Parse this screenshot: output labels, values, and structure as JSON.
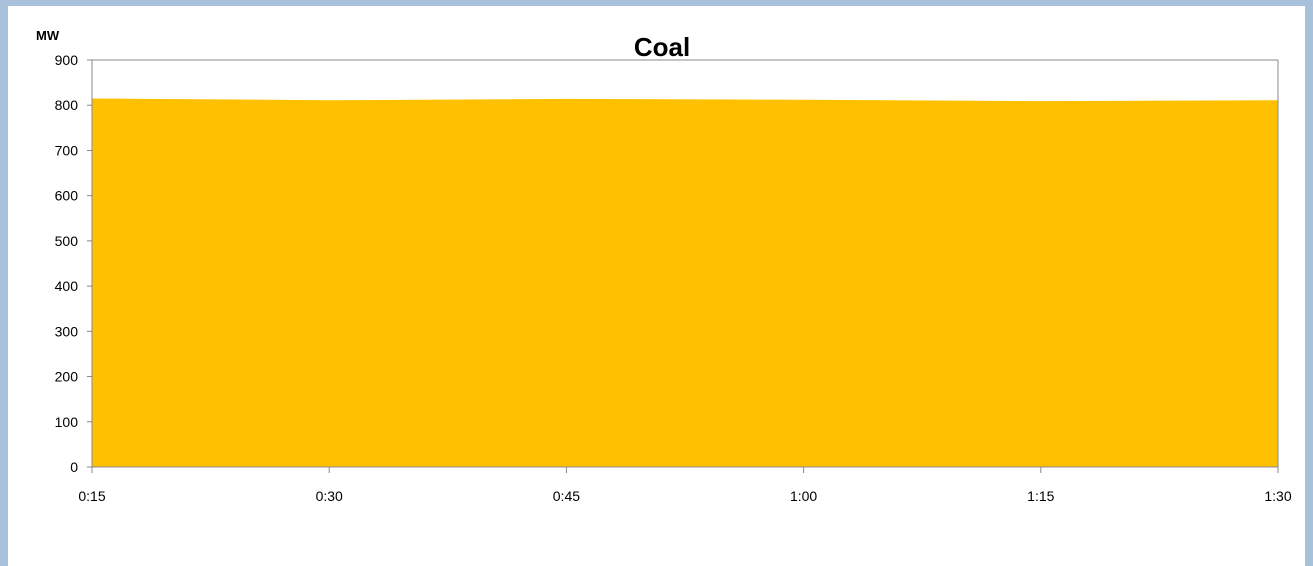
{
  "chart_data": {
    "type": "area",
    "title": "Coal",
    "ylabel": "MW",
    "xlabel": "",
    "categories": [
      "0:15",
      "0:30",
      "0:45",
      "1:00",
      "1:15",
      "1:30"
    ],
    "ylim": [
      0,
      900
    ],
    "yticks": [
      0,
      100,
      200,
      300,
      400,
      500,
      600,
      700,
      800,
      900
    ],
    "series": [
      {
        "x": [
          "0:15",
          "0:30",
          "0:45",
          "1:00",
          "1:15",
          "1:30"
        ],
        "values": [
          815,
          811,
          814,
          812,
          809,
          811
        ],
        "color": "#FFC000"
      }
    ],
    "grid": false,
    "legend": "none"
  }
}
